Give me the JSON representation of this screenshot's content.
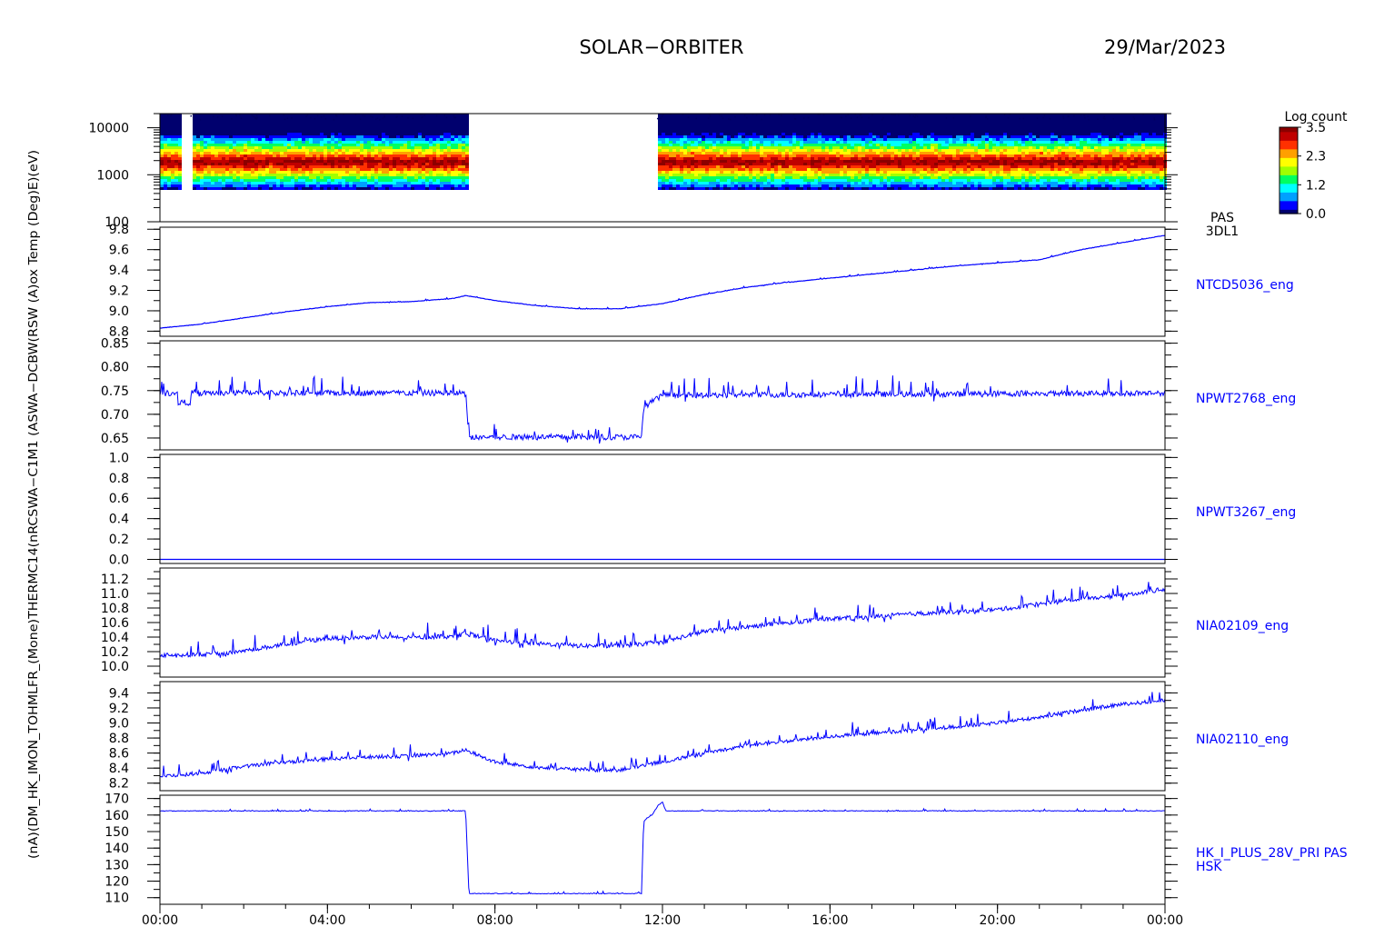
{
  "header": {
    "mission": "SOLAR−ORBITER",
    "date": "29/Mar/2023"
  },
  "left_axis_text": "(nA)(DM_HK_IMON_TOHMLFR_(Mone)THERMC14(nRCSWA−C1M1 (ASWA−DCBW(RSW (A)ox Temp (Deg)E)(eV)",
  "x_axis": {
    "range_hours": [
      0,
      24
    ],
    "tick_hours": [
      0,
      4,
      8,
      12,
      16,
      20,
      24
    ],
    "tick_labels": [
      "00:00",
      "04:00",
      "08:00",
      "12:00",
      "16:00",
      "20:00",
      "00:00"
    ]
  },
  "colorbar": {
    "title": "Log count",
    "ticks": [
      "3.5",
      "2.3",
      "1.2",
      "0.0"
    ],
    "colors": [
      "#00006e",
      "#0000ff",
      "#00a0ff",
      "#00ffff",
      "#00ff60",
      "#a0ff00",
      "#ffff00",
      "#ffa000",
      "#ff3000",
      "#c00000",
      "#8c0000"
    ]
  },
  "series_color": "#0000ff",
  "chart_data": [
    {
      "type": "heatmap",
      "label_lines": [
        "PAS",
        "3DL1"
      ],
      "y_scale": "log",
      "ylim": [
        100,
        20000
      ],
      "y_ticks": [
        100,
        1000,
        10000
      ],
      "y_tick_labels": [
        "100",
        "1000",
        "10000"
      ],
      "data_gaps_hours": [
        [
          0.45,
          0.72
        ],
        [
          7.33,
          11.85
        ]
      ],
      "energy_peak_eV": 2000,
      "log_count_range": [
        0.0,
        3.5
      ]
    },
    {
      "type": "line",
      "label": "NTCD5036_eng",
      "ylim": [
        8.75,
        9.82
      ],
      "y_ticks": [
        8.8,
        9.0,
        9.2,
        9.4,
        9.6,
        9.8
      ],
      "y_tick_labels": [
        "8.8",
        "9.0",
        "9.2",
        "9.4",
        "9.6",
        "9.8"
      ],
      "x": [
        0,
        1,
        2,
        3,
        4,
        5,
        6,
        7,
        7.3,
        8,
        9,
        10,
        11,
        12,
        13,
        14,
        15,
        16,
        17,
        18,
        19,
        20,
        21,
        22,
        23,
        24
      ],
      "y": [
        8.83,
        8.87,
        8.93,
        8.99,
        9.04,
        9.08,
        9.09,
        9.12,
        9.15,
        9.1,
        9.05,
        9.02,
        9.02,
        9.07,
        9.16,
        9.23,
        9.28,
        9.32,
        9.36,
        9.4,
        9.44,
        9.47,
        9.5,
        9.6,
        9.67,
        9.74
      ],
      "noise": 0.004
    },
    {
      "type": "line",
      "label": "NPWT2768_eng",
      "ylim": [
        0.625,
        0.855
      ],
      "y_ticks": [
        0.65,
        0.7,
        0.75,
        0.8,
        0.85
      ],
      "y_tick_labels": [
        "0.65",
        "0.70",
        "0.75",
        "0.80",
        "0.85"
      ],
      "x": [
        0,
        0.42,
        0.43,
        0.72,
        0.73,
        7.3,
        7.38,
        11.5,
        11.55,
        11.6,
        12.0,
        24
      ],
      "y": [
        0.745,
        0.745,
        0.725,
        0.725,
        0.745,
        0.745,
        0.652,
        0.652,
        0.712,
        0.718,
        0.74,
        0.745
      ],
      "noise": 0.012
    },
    {
      "type": "line",
      "label": "NPWT3267_eng",
      "ylim": [
        -0.04,
        1.03
      ],
      "y_ticks": [
        0.0,
        0.2,
        0.4,
        0.6,
        0.8,
        1.0
      ],
      "y_tick_labels": [
        "0.0",
        "0.2",
        "0.4",
        "0.6",
        "0.8",
        "1.0"
      ],
      "x": [
        0,
        24
      ],
      "y": [
        0.0,
        0.0
      ],
      "noise": 0
    },
    {
      "type": "line",
      "label": "NIA02109_eng",
      "ylim": [
        9.85,
        11.35
      ],
      "y_ticks": [
        10.0,
        10.2,
        10.4,
        10.6,
        10.8,
        11.0,
        11.2
      ],
      "y_tick_labels": [
        "10.0",
        "10.2",
        "10.4",
        "10.6",
        "10.8",
        "11.0",
        "11.2"
      ],
      "x": [
        0,
        1.5,
        3,
        4,
        5,
        6,
        7,
        7.3,
        8,
        9,
        10,
        11,
        12,
        13,
        14,
        15,
        16,
        17,
        18,
        19,
        20,
        21,
        22,
        23,
        24
      ],
      "y": [
        10.15,
        10.17,
        10.3,
        10.38,
        10.4,
        10.39,
        10.42,
        10.45,
        10.35,
        10.31,
        10.28,
        10.28,
        10.33,
        10.48,
        10.54,
        10.6,
        10.65,
        10.68,
        10.72,
        10.75,
        10.78,
        10.85,
        10.93,
        10.98,
        11.06
      ],
      "noise": 0.06
    },
    {
      "type": "line",
      "label": "NIA02110_eng",
      "ylim": [
        8.1,
        9.55
      ],
      "y_ticks": [
        8.2,
        8.4,
        8.6,
        8.8,
        9.0,
        9.2,
        9.4
      ],
      "y_tick_labels": [
        "8.2",
        "8.4",
        "8.6",
        "8.8",
        "9.0",
        "9.2",
        "9.4"
      ],
      "x": [
        0,
        1,
        2,
        3,
        4,
        5,
        6,
        7,
        7.3,
        8,
        9,
        10,
        11,
        12,
        13,
        14,
        15,
        16,
        17,
        18,
        19,
        20,
        21,
        22,
        23,
        24
      ],
      "y": [
        8.29,
        8.33,
        8.42,
        8.48,
        8.52,
        8.55,
        8.56,
        8.6,
        8.64,
        8.48,
        8.41,
        8.38,
        8.38,
        8.48,
        8.6,
        8.7,
        8.76,
        8.82,
        8.86,
        8.91,
        8.95,
        9.0,
        9.08,
        9.17,
        9.25,
        9.3
      ],
      "noise": 0.05
    },
    {
      "type": "line",
      "label": "HK_I_PLUS_28V_PRI PAS",
      "label2": "HSK",
      "ylim": [
        106,
        172
      ],
      "y_ticks": [
        110,
        120,
        130,
        140,
        150,
        160,
        170
      ],
      "y_tick_labels": [
        "110",
        "120",
        "130",
        "140",
        "150",
        "160",
        "170"
      ],
      "x": [
        0,
        7.3,
        7.38,
        11.5,
        11.55,
        11.62,
        11.75,
        11.9,
        12.0,
        12.08,
        12.2,
        24
      ],
      "y": [
        162.5,
        162.5,
        112.5,
        112.5,
        156,
        158,
        160,
        166,
        168,
        162.5,
        162.5,
        162.5
      ],
      "noise": 0.4
    }
  ]
}
